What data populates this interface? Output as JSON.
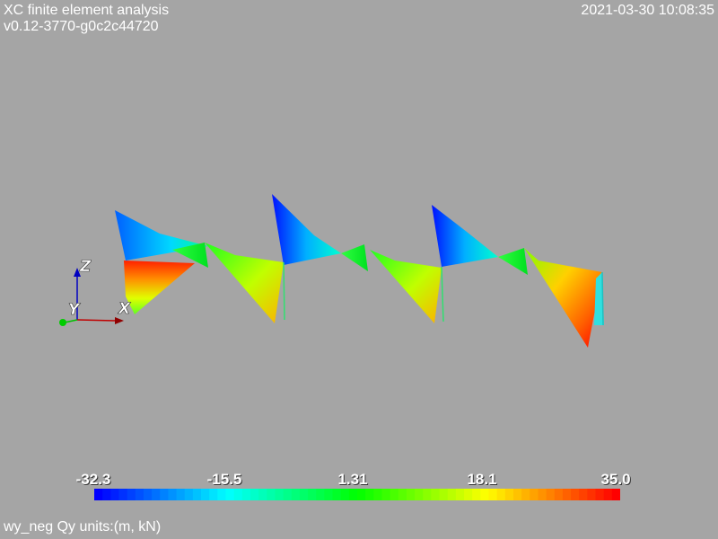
{
  "header": {
    "title": "XC finite element analysis",
    "version": "v0.12-3770-g0c2c44720",
    "timestamp": "2021-03-30 10:08:35"
  },
  "footer": {
    "caption": "wy_neg Qy units:(m, kN)"
  },
  "colorbar": {
    "labels": [
      "-32.3",
      "-15.5",
      "1.31",
      "18.1",
      "35.0"
    ],
    "min": -32.3,
    "max": 35.0,
    "colormap": [
      "#0000ff",
      "#00ffff",
      "#00ff00",
      "#ffff00",
      "#ff0000"
    ]
  },
  "axes": {
    "x_label": "X",
    "y_label": "Y",
    "z_label": "Z",
    "x_color": "#c00000",
    "y_color": "#00c000",
    "z_color": "#0000c0"
  }
}
